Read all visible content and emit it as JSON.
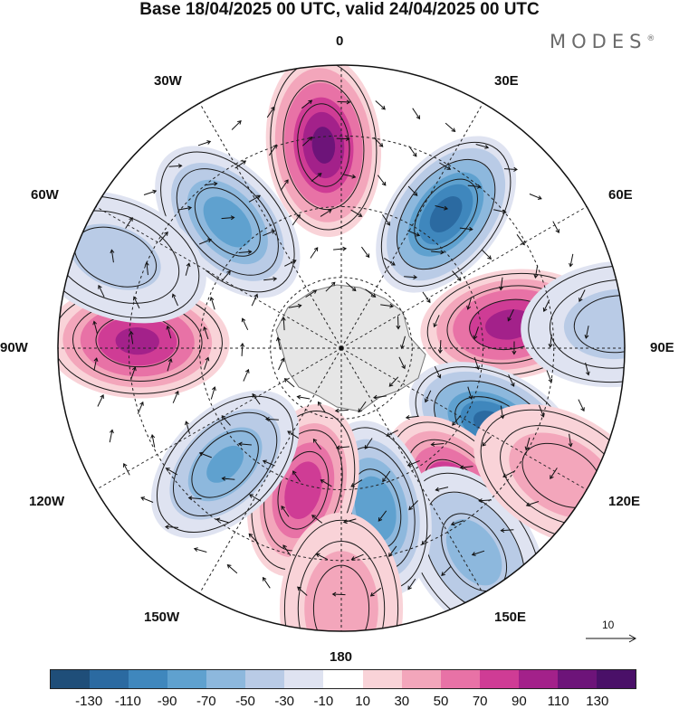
{
  "title": "Base 18/04/2025 00 UTC, valid 24/04/2025 00 UTC",
  "brand": "MODES",
  "brand_mark": "®",
  "longitude_labels": {
    "l0": "0",
    "l30e": "30E",
    "l60e": "60E",
    "l90e": "90E",
    "l120e": "120E",
    "l150e": "150E",
    "l180": "180",
    "l150w": "150W",
    "l120w": "120W",
    "l90w": "90W",
    "l60w": "60W",
    "l30w": "30W"
  },
  "vector_scale_label": "10",
  "colorbar": {
    "ticks": [
      "-130",
      "-110",
      "-90",
      "-70",
      "-50",
      "-30",
      "-10",
      "10",
      "30",
      "50",
      "70",
      "90",
      "110",
      "130"
    ],
    "colors": [
      "#1f4e79",
      "#2b6aa1",
      "#3f87bd",
      "#5fa1cf",
      "#8db8dd",
      "#b9cbe6",
      "#dfe3f1",
      "#ffffff",
      "#f9d3d8",
      "#f3a6bb",
      "#e872a6",
      "#cf3c95",
      "#a3218a",
      "#6d1479",
      "#4a1068"
    ]
  },
  "field_cells": [
    {
      "lon": 355,
      "r": 0.72,
      "sign": 1,
      "v": 115
    },
    {
      "lon": 38,
      "r": 0.6,
      "sign": -1,
      "v": 120
    },
    {
      "lon": 82,
      "r": 0.6,
      "sign": 1,
      "v": 100
    },
    {
      "lon": 117,
      "r": 0.6,
      "sign": -1,
      "v": 120
    },
    {
      "lon": 142,
      "r": 0.66,
      "sign": 1,
      "v": 95
    },
    {
      "lon": 147,
      "r": 0.86,
      "sign": -1,
      "v": 55
    },
    {
      "lon": 168,
      "r": 0.58,
      "sign": -1,
      "v": 85
    },
    {
      "lon": 195,
      "r": 0.52,
      "sign": 1,
      "v": 80
    },
    {
      "lon": 225,
      "r": 0.58,
      "sign": -1,
      "v": 70
    },
    {
      "lon": 272,
      "r": 0.72,
      "sign": 1,
      "v": 95
    },
    {
      "lon": 318,
      "r": 0.6,
      "sign": -1,
      "v": 80
    },
    {
      "lon": 292,
      "r": 0.86,
      "sign": -1,
      "v": 30
    },
    {
      "lon": 120,
      "r": 0.9,
      "sign": 1,
      "v": 40
    },
    {
      "lon": 180,
      "r": 0.92,
      "sign": 1,
      "v": 40
    },
    {
      "lon": 85,
      "r": 0.98,
      "sign": -1,
      "v": 35
    }
  ]
}
